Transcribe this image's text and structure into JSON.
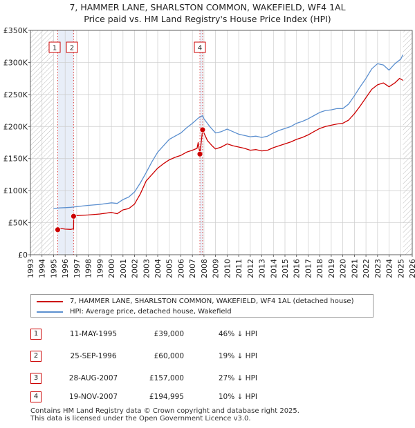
{
  "header": {
    "title_line1": "7, HAMMER LANE, SHARLSTON COMMON, WAKEFIELD, WF4 1AL",
    "title_line2": "Price paid vs. HM Land Registry's House Price Index (HPI)"
  },
  "chart_data": {
    "type": "line",
    "title": "Price paid vs. HM Land Registry's House Price Index (HPI)",
    "xlim": [
      1993,
      2026
    ],
    "ylim": [
      0,
      350000
    ],
    "x_ticks": [
      "1993",
      "1994",
      "1995",
      "1996",
      "1997",
      "1998",
      "1999",
      "2000",
      "2001",
      "2002",
      "2003",
      "2004",
      "2005",
      "2006",
      "2007",
      "2008",
      "2009",
      "2010",
      "2011",
      "2012",
      "2013",
      "2014",
      "2015",
      "2016",
      "2017",
      "2018",
      "2019",
      "2020",
      "2021",
      "2022",
      "2023",
      "2024",
      "2025",
      "2026"
    ],
    "y_ticks": [
      {
        "value": 0,
        "label": "£0"
      },
      {
        "value": 50000,
        "label": "£50K"
      },
      {
        "value": 100000,
        "label": "£100K"
      },
      {
        "value": 150000,
        "label": "£150K"
      },
      {
        "value": 200000,
        "label": "£200K"
      },
      {
        "value": 250000,
        "label": "£250K"
      },
      {
        "value": 300000,
        "label": "£300K"
      },
      {
        "value": 350000,
        "label": "£350K"
      }
    ],
    "hatched_ranges": [
      [
        1993,
        1995.0
      ],
      [
        2025.2,
        2026
      ]
    ],
    "series": [
      {
        "name": "7, HAMMER LANE, SHARLSTON COMMON, WAKEFIELD, WF4 1AL (detached house)",
        "color": "#cc0000",
        "points": [
          [
            1995.36,
            39000
          ],
          [
            1995.6,
            41000
          ],
          [
            1996.0,
            40000
          ],
          [
            1996.5,
            39500
          ],
          [
            1996.73,
            40500
          ],
          [
            1996.74,
            60000
          ],
          [
            1997.0,
            61000
          ],
          [
            1998.0,
            62000
          ],
          [
            1999.0,
            63500
          ],
          [
            2000.0,
            66000
          ],
          [
            2000.5,
            64000
          ],
          [
            2001.0,
            70000
          ],
          [
            2001.5,
            72000
          ],
          [
            2002.0,
            79000
          ],
          [
            2002.5,
            95000
          ],
          [
            2003.0,
            115000
          ],
          [
            2003.5,
            125000
          ],
          [
            2004.0,
            135000
          ],
          [
            2004.5,
            142000
          ],
          [
            2005.0,
            148000
          ],
          [
            2005.5,
            152000
          ],
          [
            2006.0,
            155000
          ],
          [
            2006.5,
            160000
          ],
          [
            2007.0,
            163000
          ],
          [
            2007.4,
            166000
          ],
          [
            2007.5,
            175000
          ],
          [
            2007.65,
            157000
          ],
          [
            2007.88,
            194995
          ],
          [
            2008.0,
            190000
          ],
          [
            2008.3,
            178000
          ],
          [
            2008.7,
            170000
          ],
          [
            2009.0,
            165000
          ],
          [
            2009.5,
            168000
          ],
          [
            2010.0,
            173000
          ],
          [
            2010.5,
            170000
          ],
          [
            2011.0,
            168000
          ],
          [
            2011.5,
            166000
          ],
          [
            2012.0,
            163000
          ],
          [
            2012.5,
            164000
          ],
          [
            2013.0,
            162000
          ],
          [
            2013.5,
            163000
          ],
          [
            2014.0,
            167000
          ],
          [
            2014.5,
            170000
          ],
          [
            2015.0,
            173000
          ],
          [
            2015.5,
            176000
          ],
          [
            2016.0,
            180000
          ],
          [
            2016.5,
            183000
          ],
          [
            2017.0,
            187000
          ],
          [
            2017.5,
            192000
          ],
          [
            2018.0,
            197000
          ],
          [
            2018.5,
            200000
          ],
          [
            2019.0,
            202000
          ],
          [
            2019.5,
            204000
          ],
          [
            2020.0,
            205000
          ],
          [
            2020.5,
            210000
          ],
          [
            2021.0,
            220000
          ],
          [
            2021.5,
            232000
          ],
          [
            2022.0,
            245000
          ],
          [
            2022.5,
            258000
          ],
          [
            2023.0,
            265000
          ],
          [
            2023.5,
            268000
          ],
          [
            2024.0,
            262000
          ],
          [
            2024.5,
            268000
          ],
          [
            2024.9,
            275000
          ],
          [
            2025.2,
            272000
          ]
        ]
      },
      {
        "name": "HPI: Average price, detached house, Wakefield",
        "color": "#5b8fcf",
        "points": [
          [
            1995.0,
            72000
          ],
          [
            1995.5,
            73000
          ],
          [
            1996.0,
            73500
          ],
          [
            1996.5,
            74000
          ],
          [
            1997.0,
            75000
          ],
          [
            1997.5,
            76000
          ],
          [
            1998.0,
            77000
          ],
          [
            1999.0,
            78500
          ],
          [
            2000.0,
            81000
          ],
          [
            2000.5,
            80000
          ],
          [
            2001.0,
            86000
          ],
          [
            2001.5,
            90000
          ],
          [
            2002.0,
            98000
          ],
          [
            2002.5,
            112000
          ],
          [
            2003.0,
            128000
          ],
          [
            2003.5,
            145000
          ],
          [
            2004.0,
            160000
          ],
          [
            2004.5,
            170000
          ],
          [
            2005.0,
            180000
          ],
          [
            2005.5,
            185000
          ],
          [
            2006.0,
            190000
          ],
          [
            2006.5,
            198000
          ],
          [
            2007.0,
            205000
          ],
          [
            2007.5,
            213000
          ],
          [
            2007.88,
            217000
          ],
          [
            2008.0,
            212000
          ],
          [
            2008.5,
            200000
          ],
          [
            2009.0,
            190000
          ],
          [
            2009.5,
            192000
          ],
          [
            2010.0,
            196000
          ],
          [
            2010.5,
            192000
          ],
          [
            2011.0,
            188000
          ],
          [
            2011.5,
            186000
          ],
          [
            2012.0,
            184000
          ],
          [
            2012.5,
            185000
          ],
          [
            2013.0,
            183000
          ],
          [
            2013.5,
            185000
          ],
          [
            2014.0,
            190000
          ],
          [
            2014.5,
            194000
          ],
          [
            2015.0,
            197000
          ],
          [
            2015.5,
            200000
          ],
          [
            2016.0,
            205000
          ],
          [
            2016.5,
            208000
          ],
          [
            2017.0,
            212000
          ],
          [
            2017.5,
            217000
          ],
          [
            2018.0,
            222000
          ],
          [
            2018.5,
            225000
          ],
          [
            2019.0,
            226000
          ],
          [
            2019.5,
            228000
          ],
          [
            2020.0,
            228000
          ],
          [
            2020.5,
            235000
          ],
          [
            2021.0,
            248000
          ],
          [
            2021.5,
            262000
          ],
          [
            2022.0,
            275000
          ],
          [
            2022.5,
            290000
          ],
          [
            2023.0,
            298000
          ],
          [
            2023.5,
            296000
          ],
          [
            2024.0,
            288000
          ],
          [
            2024.5,
            298000
          ],
          [
            2025.0,
            305000
          ],
          [
            2025.2,
            312000
          ]
        ]
      }
    ],
    "transactions": [
      {
        "id": "1",
        "date": "11-MAY-1995",
        "x": 1995.36,
        "price": 39000,
        "price_label": "£39,000",
        "hpi_diff": "46% ↓ HPI"
      },
      {
        "id": "2",
        "date": "25-SEP-1996",
        "x": 1996.73,
        "price": 60000,
        "price_label": "£60,000",
        "hpi_diff": "19% ↓ HPI"
      },
      {
        "id": "3",
        "date": "28-AUG-2007",
        "x": 2007.65,
        "price": 157000,
        "price_label": "£157,000",
        "hpi_diff": "27% ↓ HPI"
      },
      {
        "id": "4",
        "date": "19-NOV-2007",
        "x": 2007.88,
        "price": 194995,
        "price_label": "£194,995",
        "hpi_diff": "10% ↓ HPI"
      }
    ],
    "marker_labels_shown": [
      "1",
      "2",
      "4"
    ]
  },
  "legend": {
    "property_label": "7, HAMMER LANE, SHARLSTON COMMON, WAKEFIELD, WF4 1AL (detached house)",
    "hpi_label": "HPI: Average price, detached house, Wakefield"
  },
  "colors": {
    "property": "#cc0000",
    "hpi": "#5b8fcf",
    "shade": "#e8eef8",
    "grid": "#cccccc"
  },
  "footer": {
    "line1": "Contains HM Land Registry data © Crown copyright and database right 2025.",
    "line2": "This data is licensed under the Open Government Licence v3.0."
  }
}
